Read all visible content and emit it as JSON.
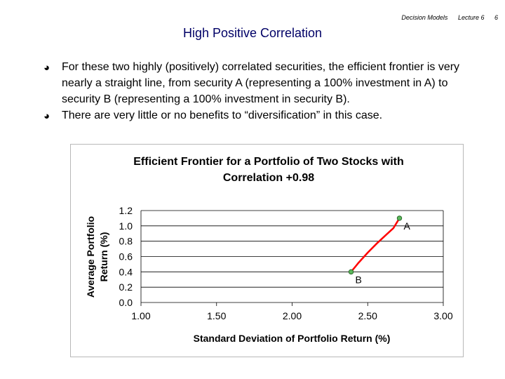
{
  "header": {
    "course": "Decision Models",
    "lecture": "Lecture 6",
    "page": "6"
  },
  "slide": {
    "title": "High Positive Correlation",
    "bullets": [
      "For these two highly (positively) correlated securities, the efficient frontier is very nearly a straight line, from security A (representing a 100% investment in A) to security B (representing a 100% investment in security B).",
      "There are very little or no benefits to “diversification” in this case."
    ]
  },
  "colors": {
    "title": "#000066",
    "curve": "#ff0000",
    "marker": "#5cb85c"
  },
  "chart_data": {
    "type": "line",
    "title_line1": "Efficient Frontier for a Portfolio of Two Stocks with",
    "title_line2": "Correlation +0.98",
    "xlabel": "Standard Deviation of Portfolio Return (%)",
    "ylabel_line1": "Average Portfolio",
    "ylabel_line2": "Return (%)",
    "xlim": [
      1.0,
      3.0
    ],
    "ylim": [
      0.0,
      1.2
    ],
    "xticks": [
      1.0,
      1.5,
      2.0,
      2.5,
      3.0
    ],
    "xtick_labels": [
      "1.00",
      "1.50",
      "2.00",
      "2.50",
      "3.00"
    ],
    "yticks": [
      0.0,
      0.2,
      0.4,
      0.6,
      0.8,
      1.0,
      1.2
    ],
    "ytick_labels": [
      "0.0",
      "0.2",
      "0.4",
      "0.6",
      "0.8",
      "1.0",
      "1.2"
    ],
    "grid": true,
    "series": [
      {
        "name": "Efficient Frontier",
        "x": [
          2.39,
          2.44,
          2.5,
          2.56,
          2.62,
          2.67,
          2.71
        ],
        "y": [
          0.4,
          0.52,
          0.65,
          0.77,
          0.88,
          0.97,
          1.1
        ]
      }
    ],
    "endpoints": [
      {
        "label": "A",
        "x": 2.71,
        "y": 1.1
      },
      {
        "label": "B",
        "x": 2.39,
        "y": 0.4
      }
    ]
  }
}
